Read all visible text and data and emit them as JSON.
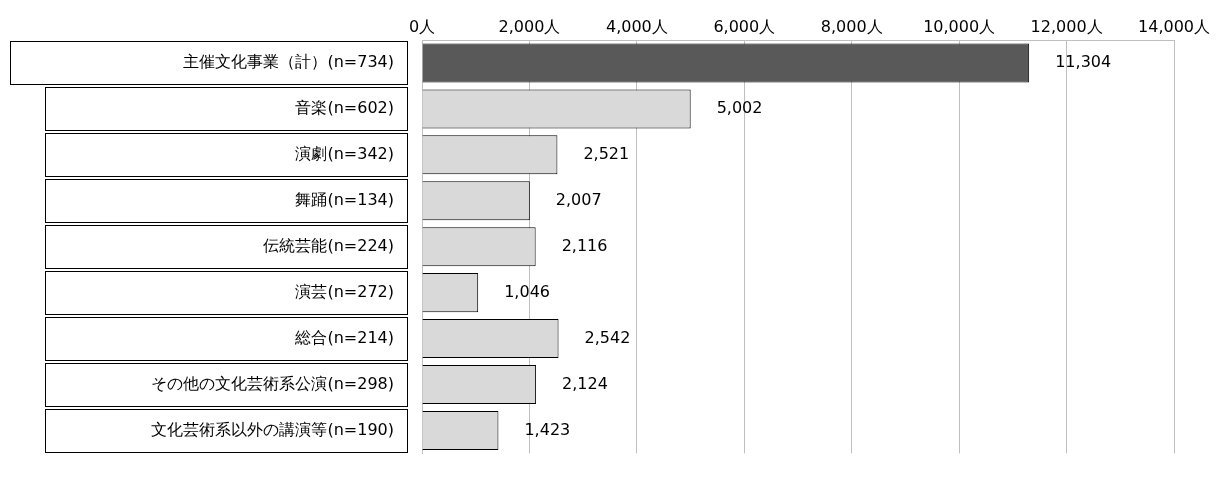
{
  "chart_data": {
    "type": "bar",
    "orientation": "horizontal",
    "categories": [
      "主催文化事業（計）(n=734)",
      "音楽(n=602)",
      "演劇(n=342)",
      "舞踊(n=134)",
      "伝統芸能(n=224)",
      "演芸(n=272)",
      "総合(n=214)",
      "その他の文化芸術系公演(n=298)",
      "文化芸術系以外の講演等(n=190)"
    ],
    "values": [
      11304,
      5002,
      2521,
      2007,
      2116,
      1046,
      2542,
      2124,
      1423
    ],
    "colors": [
      "#595959",
      "#d9d9d9",
      "#d9d9d9",
      "#d9d9d9",
      "#d9d9d9",
      "#d9d9d9",
      "#d9d9d9",
      "#d9d9d9",
      "#d9d9d9"
    ],
    "value_labels": [
      "11,304",
      "5,002",
      "2,521",
      "2,007",
      "2,116",
      "1,046",
      "2,542",
      "2,124",
      "1,423"
    ],
    "xlim": [
      0,
      14000
    ],
    "xticks": [
      {
        "value": 0,
        "label": "0人"
      },
      {
        "value": 2000,
        "label": "2,000人"
      },
      {
        "value": 4000,
        "label": "4,000人"
      },
      {
        "value": 6000,
        "label": "6,000人"
      },
      {
        "value": 8000,
        "label": "8,000人"
      },
      {
        "value": 10000,
        "label": "10,000人"
      },
      {
        "value": 12000,
        "label": "12,000人"
      },
      {
        "value": 14000,
        "label": "14,000人"
      }
    ],
    "grid": "x",
    "legend": false
  }
}
